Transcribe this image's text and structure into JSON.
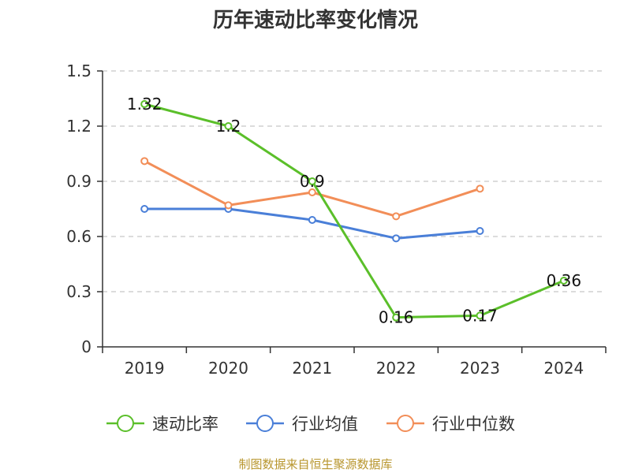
{
  "chart_data": {
    "type": "line",
    "title": "历年速动比率变化情况",
    "xlabel": "",
    "ylabel": "",
    "categories": [
      "2019",
      "2020",
      "2021",
      "2022",
      "2023",
      "2024"
    ],
    "ylim": [
      0,
      1.5
    ],
    "yticks": [
      "0",
      "0.3",
      "0.6",
      "0.9",
      "1.2",
      "1.5"
    ],
    "grid": true,
    "legend": "bottom",
    "series": [
      {
        "name": "速动比率",
        "color": "#5bbf2a",
        "values": [
          1.32,
          1.2,
          0.9,
          0.16,
          0.17,
          0.36
        ],
        "labels": [
          "1.32",
          "1.2",
          "0.9",
          "0.16",
          "0.17",
          "0.36"
        ]
      },
      {
        "name": "行业均值",
        "color": "#4a7fd8",
        "values": [
          0.75,
          0.75,
          0.69,
          0.59,
          0.63,
          null
        ]
      },
      {
        "name": "行业中位数",
        "color": "#f28e58",
        "values": [
          1.01,
          0.77,
          0.84,
          0.71,
          0.86,
          null
        ]
      }
    ]
  },
  "source": "制图数据来自恒生聚源数据库"
}
